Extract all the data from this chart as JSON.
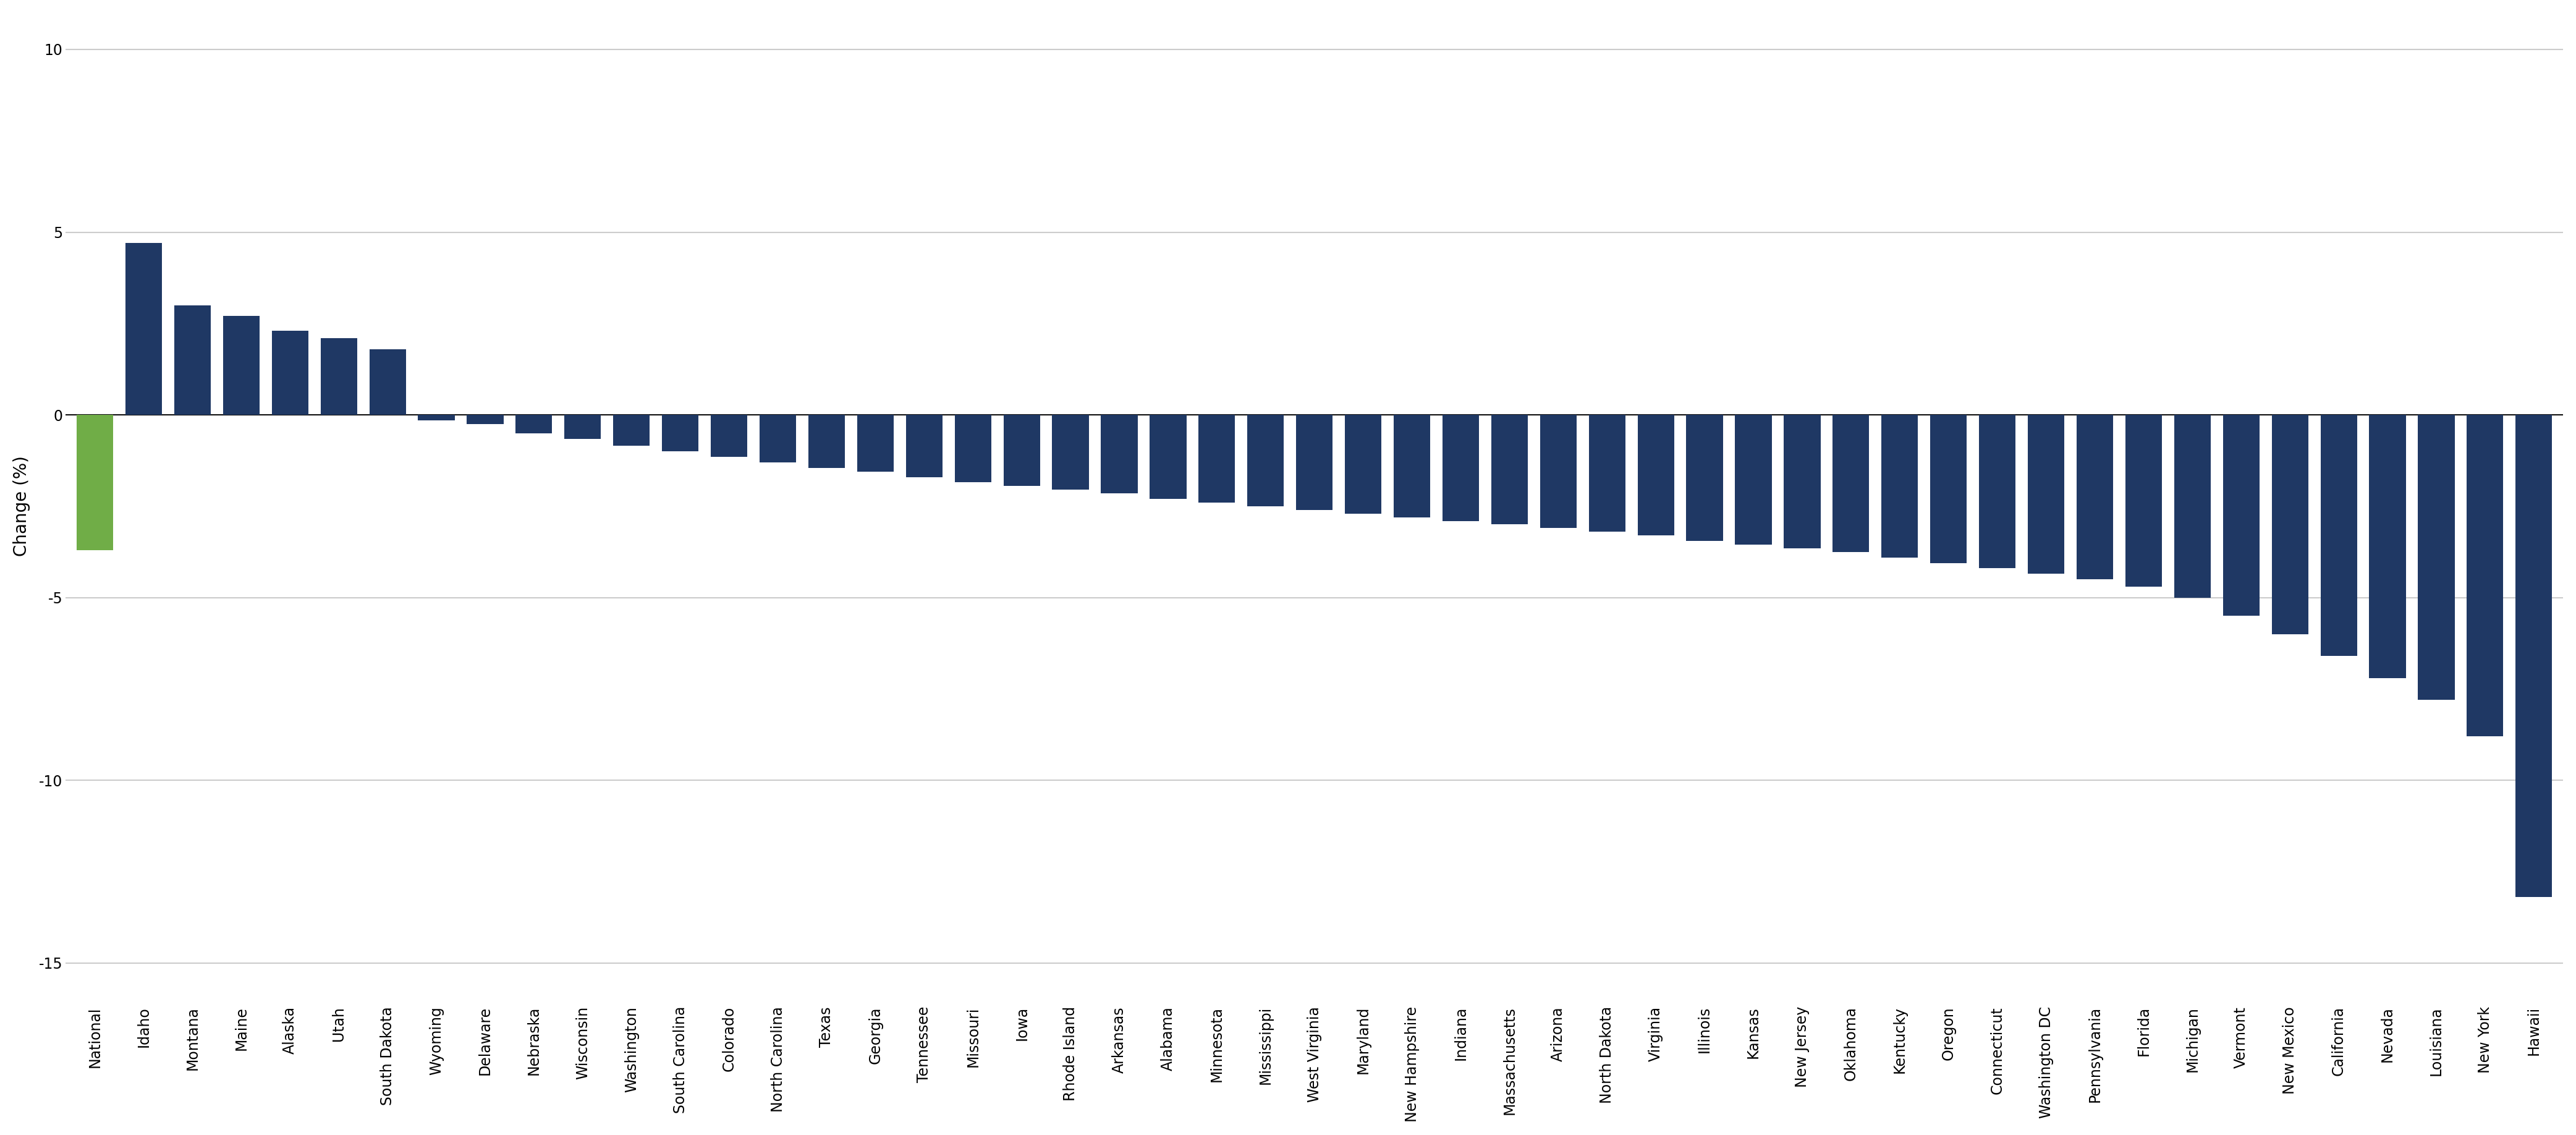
{
  "ylabel": "Change (%)",
  "categories": [
    "National",
    "Idaho",
    "Montana",
    "Maine",
    "Alaska",
    "Utah",
    "South Dakota",
    "Wyoming",
    "Delaware",
    "Nebraska",
    "Wisconsin",
    "Washington",
    "South Carolina",
    "Colorado",
    "North Carolina",
    "Texas",
    "Georgia",
    "Tennessee",
    "Missouri",
    "Iowa",
    "Rhode Island",
    "Arkansas",
    "Alabama",
    "Minnesota",
    "Mississippi",
    "West Virginia",
    "Maryland",
    "New Hampshire",
    "Indiana",
    "Massachusetts",
    "Arizona",
    "North Dakota",
    "Virginia",
    "Illinois",
    "Kansas",
    "New Jersey",
    "Oklahoma",
    "Kentucky",
    "Oregon",
    "Connecticut",
    "Washington DC",
    "Pennsylvania",
    "Florida",
    "Michigan",
    "Vermont",
    "New Mexico",
    "California",
    "Nevada",
    "Louisiana",
    "New York",
    "Hawaii"
  ],
  "values": [
    -3.7,
    4.7,
    3.0,
    2.7,
    2.3,
    2.1,
    1.8,
    -0.15,
    -0.25,
    -0.5,
    -0.65,
    -0.85,
    -1.0,
    -1.15,
    -1.3,
    -1.45,
    -1.55,
    -1.7,
    -1.85,
    -1.95,
    -2.05,
    -2.15,
    -2.3,
    -2.4,
    -2.5,
    -2.6,
    -2.7,
    -2.8,
    -2.9,
    -3.0,
    -3.1,
    -3.2,
    -3.3,
    -3.45,
    -3.55,
    -3.65,
    -3.75,
    -3.9,
    -4.05,
    -4.2,
    -4.35,
    -4.5,
    -4.7,
    -5.0,
    -5.5,
    -6.0,
    -6.6,
    -7.2,
    -7.8,
    -8.8,
    -13.2
  ],
  "bar_color_default": "#1f3864",
  "bar_color_national": "#70ad47",
  "ylim": [
    -16,
    11
  ],
  "yticks": [
    -15,
    -10,
    -5,
    0,
    5,
    10
  ],
  "background_color": "#ffffff",
  "grid_color": "#cccccc",
  "title_fontsize": 22,
  "axis_label_fontsize": 20,
  "tick_fontsize": 17,
  "bar_width": 0.75
}
